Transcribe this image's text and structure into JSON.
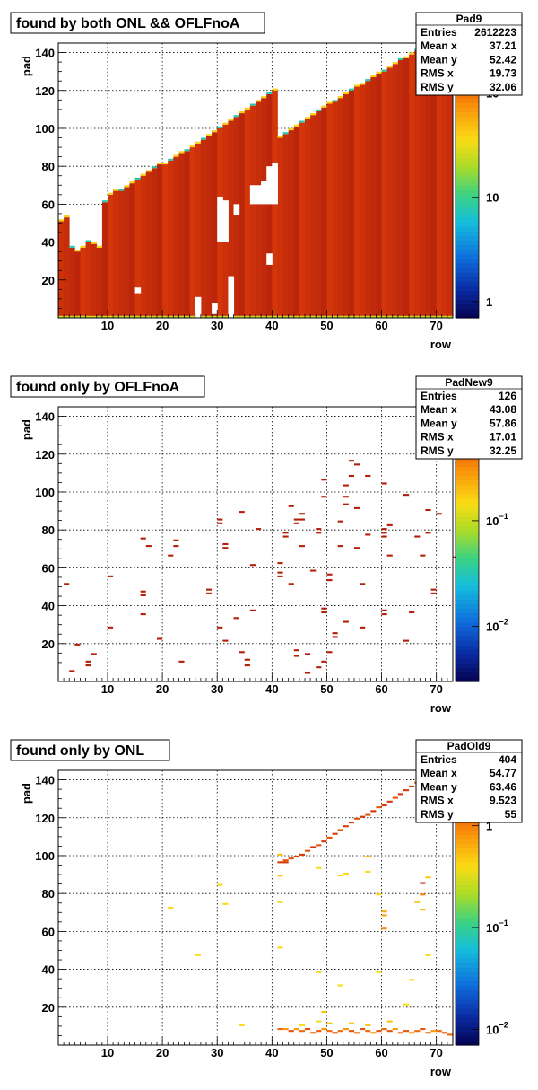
{
  "chart_data": [
    {
      "type": "heatmap",
      "title": "found by both ONL && OFLFnoA",
      "xlabel": "row",
      "ylabel": "pad",
      "xlim": [
        1,
        73
      ],
      "ylim": [
        0,
        145
      ],
      "x_ticks": [
        "10",
        "20",
        "30",
        "40",
        "50",
        "60",
        "70"
      ],
      "y_ticks": [
        "20",
        "40",
        "60",
        "80",
        "100",
        "120",
        "140"
      ],
      "z_scale": "log",
      "z_ticks": [
        {
          "mantissa": "10",
          "exp": "2",
          "value": 100
        },
        {
          "mantissa": "10",
          "exp": "",
          "value": 10
        },
        {
          "mantissa": "1",
          "exp": "",
          "value": 1
        }
      ],
      "z_range": [
        0.7,
        300
      ],
      "grid": true,
      "stats": {
        "name": "Pad9",
        "rows": [
          {
            "label": "Entries",
            "value": "2612223"
          },
          {
            "label": "Mean x",
            "value": "37.21"
          },
          {
            "label": "Mean y",
            "value": "52.42"
          },
          {
            "label": "RMS x",
            "value": "19.73"
          },
          {
            "label": "RMS y",
            "value": "32.06"
          }
        ]
      },
      "description": "dense fill: row 1-72, pad 0 to padmax(row) with typical z ~ 200; edges show lower-count cells; small gaps near rows 26-35 and rows 36-40 pad 60-80",
      "padmax_by_row": [
        [
          1,
          52
        ],
        [
          2,
          54
        ],
        [
          3,
          38
        ],
        [
          4,
          36
        ],
        [
          5,
          38
        ],
        [
          6,
          41
        ],
        [
          7,
          40
        ],
        [
          8,
          38
        ],
        [
          9,
          62
        ],
        [
          10,
          66
        ],
        [
          11,
          68
        ],
        [
          12,
          68
        ],
        [
          13,
          70
        ],
        [
          14,
          72
        ],
        [
          15,
          74
        ],
        [
          16,
          76
        ],
        [
          17,
          78
        ],
        [
          18,
          80
        ],
        [
          19,
          82
        ],
        [
          20,
          82
        ],
        [
          21,
          84
        ],
        [
          22,
          86
        ],
        [
          23,
          88
        ],
        [
          24,
          89
        ],
        [
          25,
          91
        ],
        [
          26,
          93
        ],
        [
          27,
          95
        ],
        [
          28,
          97
        ],
        [
          29,
          99
        ],
        [
          30,
          101
        ],
        [
          31,
          103
        ],
        [
          32,
          105
        ],
        [
          33,
          107
        ],
        [
          34,
          109
        ],
        [
          35,
          111
        ],
        [
          36,
          113
        ],
        [
          37,
          115
        ],
        [
          38,
          117
        ],
        [
          39,
          119
        ],
        [
          40,
          121
        ],
        [
          41,
          96
        ],
        [
          42,
          98
        ],
        [
          43,
          100
        ],
        [
          44,
          102
        ],
        [
          45,
          104
        ],
        [
          46,
          106
        ],
        [
          47,
          108
        ],
        [
          48,
          110
        ],
        [
          49,
          112
        ],
        [
          50,
          114
        ],
        [
          51,
          115
        ],
        [
          52,
          117
        ],
        [
          53,
          119
        ],
        [
          54,
          121
        ],
        [
          55,
          123
        ],
        [
          56,
          124
        ],
        [
          57,
          126
        ],
        [
          58,
          128
        ],
        [
          59,
          130
        ],
        [
          60,
          131
        ],
        [
          61,
          133
        ],
        [
          62,
          135
        ],
        [
          63,
          137
        ],
        [
          64,
          138
        ],
        [
          65,
          140
        ],
        [
          66,
          142
        ],
        [
          67,
          143
        ],
        [
          68,
          144
        ],
        [
          69,
          144
        ],
        [
          70,
          144
        ],
        [
          71,
          144
        ],
        [
          72,
          144
        ]
      ]
    },
    {
      "type": "heatmap",
      "title": "found only by OFLFnoA",
      "xlabel": "row",
      "ylabel": "pad",
      "xlim": [
        1,
        73
      ],
      "ylim": [
        0,
        145
      ],
      "x_ticks": [
        "10",
        "20",
        "30",
        "40",
        "50",
        "60",
        "70"
      ],
      "y_ticks": [
        "20",
        "40",
        "60",
        "80",
        "100",
        "120",
        "140"
      ],
      "z_scale": "log",
      "z_ticks": [
        {
          "mantissa": "10",
          "exp": "−1",
          "value": 0.1
        },
        {
          "mantissa": "10",
          "exp": "−2",
          "value": 0.01
        }
      ],
      "z_range": [
        0.003,
        1.2
      ],
      "grid": true,
      "stats": {
        "name": "PadNew9",
        "rows": [
          {
            "label": "Entries",
            "value": "126"
          },
          {
            "label": "Mean x",
            "value": "43.08"
          },
          {
            "label": "Mean y",
            "value": "57.86"
          },
          {
            "label": "RMS x",
            "value": "17.01"
          },
          {
            "label": "RMS y",
            "value": "32.25"
          }
        ]
      },
      "cells": [
        [
          2,
          51
        ],
        [
          3,
          5
        ],
        [
          4,
          19
        ],
        [
          6,
          8
        ],
        [
          6,
          10
        ],
        [
          7,
          14
        ],
        [
          10,
          28
        ],
        [
          10,
          55
        ],
        [
          16,
          35
        ],
        [
          16,
          45
        ],
        [
          16,
          47
        ],
        [
          16,
          75
        ],
        [
          17,
          71
        ],
        [
          19,
          22
        ],
        [
          21,
          66
        ],
        [
          22,
          71
        ],
        [
          22,
          74
        ],
        [
          23,
          10
        ],
        [
          28,
          46
        ],
        [
          28,
          48
        ],
        [
          30,
          28
        ],
        [
          30,
          83
        ],
        [
          30,
          85
        ],
        [
          31,
          21
        ],
        [
          31,
          70
        ],
        [
          31,
          72
        ],
        [
          33,
          33
        ],
        [
          34,
          15
        ],
        [
          34,
          89
        ],
        [
          35,
          8
        ],
        [
          35,
          11
        ],
        [
          36,
          37
        ],
        [
          36,
          61
        ],
        [
          37,
          80
        ],
        [
          41,
          55
        ],
        [
          41,
          57
        ],
        [
          41,
          62
        ],
        [
          42,
          76
        ],
        [
          42,
          78
        ],
        [
          43,
          51
        ],
        [
          43,
          92
        ],
        [
          44,
          13
        ],
        [
          44,
          16
        ],
        [
          44,
          83
        ],
        [
          44,
          85
        ],
        [
          45,
          71
        ],
        [
          45,
          85
        ],
        [
          45,
          88
        ],
        [
          46,
          4
        ],
        [
          46,
          14
        ],
        [
          47,
          58
        ],
        [
          48,
          7
        ],
        [
          48,
          78
        ],
        [
          48,
          80
        ],
        [
          49,
          10
        ],
        [
          49,
          36
        ],
        [
          49,
          38
        ],
        [
          49,
          97
        ],
        [
          49,
          106
        ],
        [
          50,
          15
        ],
        [
          50,
          53
        ],
        [
          50,
          56
        ],
        [
          51,
          23
        ],
        [
          51,
          25
        ],
        [
          52,
          71
        ],
        [
          52,
          84
        ],
        [
          53,
          31
        ],
        [
          53,
          93
        ],
        [
          53,
          97
        ],
        [
          53,
          103
        ],
        [
          54,
          108
        ],
        [
          54,
          116
        ],
        [
          55,
          70
        ],
        [
          55,
          91
        ],
        [
          55,
          114
        ],
        [
          56,
          28
        ],
        [
          56,
          51
        ],
        [
          57,
          77
        ],
        [
          57,
          108
        ],
        [
          60,
          35
        ],
        [
          60,
          37
        ],
        [
          60,
          76
        ],
        [
          60,
          78
        ],
        [
          60,
          80
        ],
        [
          60,
          104
        ],
        [
          61,
          66
        ],
        [
          61,
          82
        ],
        [
          64,
          21
        ],
        [
          64,
          98
        ],
        [
          65,
          36
        ],
        [
          66,
          76
        ],
        [
          67,
          66
        ],
        [
          68,
          78
        ],
        [
          68,
          90
        ],
        [
          69,
          46
        ],
        [
          69,
          48
        ],
        [
          70,
          88
        ],
        [
          73,
          65
        ]
      ],
      "cell_value": 1
    },
    {
      "type": "heatmap",
      "title": "found only by ONL",
      "xlabel": "row",
      "ylabel": "pad",
      "xlim": [
        1,
        73
      ],
      "ylim": [
        0,
        145
      ],
      "x_ticks": [
        "10",
        "20",
        "30",
        "40",
        "50",
        "60",
        "70"
      ],
      "y_ticks": [
        "20",
        "40",
        "60",
        "80",
        "100",
        "120",
        "140"
      ],
      "z_scale": "log",
      "z_ticks": [
        {
          "mantissa": "1",
          "exp": "",
          "value": 1
        },
        {
          "mantissa": "10",
          "exp": "−1",
          "value": 0.1
        },
        {
          "mantissa": "10",
          "exp": "−2",
          "value": 0.01
        }
      ],
      "z_range": [
        0.007,
        3.5
      ],
      "grid": true,
      "stats": {
        "name": "PadOld9",
        "rows": [
          {
            "label": "Entries",
            "value": "404"
          },
          {
            "label": "Mean x",
            "value": "54.77"
          },
          {
            "label": "Mean y",
            "value": "63.46"
          },
          {
            "label": "RMS x",
            "value": "9.523"
          },
          {
            "label": "RMS y",
            "value": "55"
          }
        ]
      },
      "cells": [
        [
          41,
          96,
          2
        ],
        [
          42,
          96,
          2
        ],
        [
          42,
          97,
          1.5
        ],
        [
          43,
          98,
          1.5
        ],
        [
          44,
          99,
          2
        ],
        [
          45,
          100,
          2
        ],
        [
          46,
          102,
          1.5
        ],
        [
          47,
          104,
          2
        ],
        [
          48,
          105,
          1.5
        ],
        [
          49,
          107,
          2
        ],
        [
          50,
          109,
          1.5
        ],
        [
          51,
          111,
          2
        ],
        [
          52,
          113,
          1.5
        ],
        [
          53,
          115,
          2
        ],
        [
          54,
          117,
          2
        ],
        [
          55,
          119,
          1.5
        ],
        [
          56,
          120,
          2
        ],
        [
          57,
          121,
          1.5
        ],
        [
          58,
          123,
          2
        ],
        [
          59,
          125,
          1.5
        ],
        [
          60,
          126,
          2
        ],
        [
          61,
          128,
          2
        ],
        [
          62,
          130,
          1.5
        ],
        [
          63,
          132,
          2
        ],
        [
          64,
          134,
          2
        ],
        [
          65,
          136,
          2
        ],
        [
          66,
          138,
          1.5
        ],
        [
          67,
          140,
          2
        ],
        [
          68,
          141,
          2
        ],
        [
          69,
          142,
          1.5
        ],
        [
          70,
          143,
          2
        ],
        [
          71,
          144,
          2
        ],
        [
          72,
          144,
          1.5
        ],
        [
          41,
          8,
          1.2
        ],
        [
          42,
          8,
          0.8
        ],
        [
          43,
          7,
          1.5
        ],
        [
          44,
          8,
          0.8
        ],
        [
          45,
          7,
          1.2
        ],
        [
          46,
          8,
          1.5
        ],
        [
          47,
          6,
          1.2
        ],
        [
          48,
          7,
          1.5
        ],
        [
          49,
          8,
          0.8
        ],
        [
          50,
          7,
          1.2
        ],
        [
          51,
          6,
          1.5
        ],
        [
          52,
          7,
          1.2
        ],
        [
          53,
          8,
          0.8
        ],
        [
          54,
          7,
          1.5
        ],
        [
          55,
          6,
          1.2
        ],
        [
          56,
          8,
          1.5
        ],
        [
          57,
          7,
          1.2
        ],
        [
          58,
          6,
          0.8
        ],
        [
          59,
          7,
          1.5
        ],
        [
          60,
          8,
          1.2
        ],
        [
          61,
          7,
          1.5
        ],
        [
          62,
          8,
          0.8
        ],
        [
          63,
          6,
          1.2
        ],
        [
          64,
          7,
          1.5
        ],
        [
          65,
          6,
          0.8
        ],
        [
          66,
          7,
          1.2
        ],
        [
          67,
          8,
          1.5
        ],
        [
          68,
          6,
          1.2
        ],
        [
          69,
          7,
          0.8
        ],
        [
          70,
          7,
          1.2
        ],
        [
          71,
          6,
          1.5
        ],
        [
          72,
          5,
          1.2
        ],
        [
          41,
          100,
          0.5
        ],
        [
          41,
          89,
          0.5
        ],
        [
          41,
          75,
          0.4
        ],
        [
          41,
          51,
          0.4
        ],
        [
          45,
          10,
          0.4
        ],
        [
          48,
          12,
          0.4
        ],
        [
          48,
          38,
          0.4
        ],
        [
          48,
          93,
          0.4
        ],
        [
          49,
          17,
          0.5
        ],
        [
          50,
          11,
          0.5
        ],
        [
          52,
          31,
          0.4
        ],
        [
          52,
          89,
          0.4
        ],
        [
          53,
          90,
          0.4
        ],
        [
          54,
          11,
          0.5
        ],
        [
          57,
          99,
          0.5
        ],
        [
          57,
          10,
          0.5
        ],
        [
          57,
          91,
          0.4
        ],
        [
          59,
          38,
          0.4
        ],
        [
          59,
          79,
          0.4
        ],
        [
          60,
          70,
          0.7
        ],
        [
          60,
          68,
          0.7
        ],
        [
          60,
          61,
          0.9
        ],
        [
          61,
          12,
          0.5
        ],
        [
          64,
          21,
          0.4
        ],
        [
          65,
          34,
          0.4
        ],
        [
          66,
          75,
          0.5
        ],
        [
          67,
          71,
          0.6
        ],
        [
          67,
          79,
          1
        ],
        [
          67,
          85,
          2.5
        ],
        [
          68,
          47,
          0.4
        ],
        [
          68,
          88,
          0.5
        ],
        [
          21,
          72,
          0.4
        ],
        [
          26,
          47,
          0.4
        ],
        [
          30,
          84,
          0.4
        ],
        [
          31,
          74,
          0.4
        ],
        [
          34,
          10,
          0.4
        ]
      ]
    }
  ]
}
